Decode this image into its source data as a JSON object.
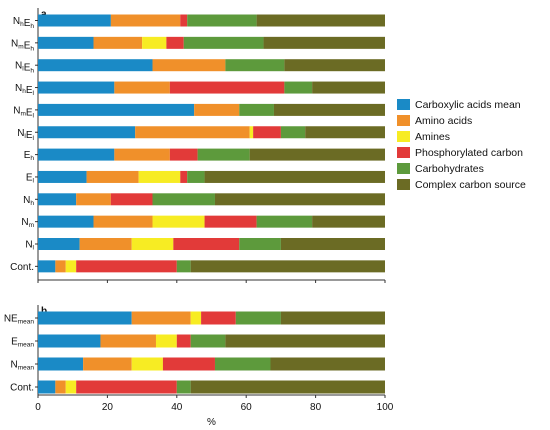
{
  "chart_data": [
    {
      "panel": "a",
      "type": "bar",
      "orientation": "horizontal",
      "stacked": true,
      "categories": [
        {
          "main": "N",
          "sub": "h",
          "main2": "E",
          "sub2": "h"
        },
        {
          "main": "N",
          "sub": "m",
          "main2": "E",
          "sub2": "h"
        },
        {
          "main": "N",
          "sub": "l",
          "main2": "E",
          "sub2": "h"
        },
        {
          "main": "N",
          "sub": "h",
          "main2": "E",
          "sub2": "l"
        },
        {
          "main": "N",
          "sub": "m",
          "main2": "E",
          "sub2": "l"
        },
        {
          "main": "N",
          "sub": "l",
          "main2": "E",
          "sub2": "l"
        },
        {
          "main": "E",
          "sub": "h",
          "main2": "",
          "sub2": ""
        },
        {
          "main": "E",
          "sub": "l",
          "main2": "",
          "sub2": ""
        },
        {
          "main": "N",
          "sub": "h",
          "main2": "",
          "sub2": ""
        },
        {
          "main": "N",
          "sub": "m",
          "main2": "",
          "sub2": ""
        },
        {
          "main": "N",
          "sub": "l",
          "main2": "",
          "sub2": ""
        },
        {
          "main": "Cont.",
          "sub": "",
          "main2": "",
          "sub2": ""
        }
      ],
      "series": [
        {
          "name": "Carboxylic acids mean",
          "color": "#1a8ac6",
          "values": [
            21,
            16,
            33,
            22,
            45,
            28,
            22,
            14,
            11,
            16,
            12,
            5
          ]
        },
        {
          "name": "Amino acids",
          "color": "#f0902a",
          "values": [
            20,
            14,
            21,
            16,
            13,
            33,
            16,
            15,
            10,
            17,
            15,
            3
          ]
        },
        {
          "name": "Amines",
          "color": "#f7ec23",
          "values": [
            0,
            7,
            0,
            0,
            0,
            1,
            0,
            12,
            0,
            15,
            12,
            3
          ]
        },
        {
          "name": "Phosphorylated carbon",
          "color": "#e23a39",
          "values": [
            2,
            5,
            0,
            33,
            0,
            8,
            8,
            2,
            12,
            15,
            19,
            29
          ]
        },
        {
          "name": "Carbohydrates",
          "color": "#5d9a3c",
          "values": [
            20,
            23,
            17,
            8,
            10,
            7,
            15,
            5,
            18,
            16,
            12,
            4
          ]
        },
        {
          "name": "Complex carbon source",
          "color": "#6b6b24",
          "values": [
            37,
            35,
            29,
            21,
            32,
            23,
            39,
            52,
            49,
            21,
            30,
            56
          ]
        }
      ],
      "xlim": [
        0,
        100
      ]
    },
    {
      "panel": "b",
      "type": "bar",
      "orientation": "horizontal",
      "stacked": true,
      "categories": [
        {
          "main": "NE",
          "sub": "mean",
          "main2": "",
          "sub2": ""
        },
        {
          "main": "E",
          "sub": "mean",
          "main2": "",
          "sub2": ""
        },
        {
          "main": "N",
          "sub": "mean",
          "main2": "",
          "sub2": ""
        },
        {
          "main": "Cont.",
          "sub": "",
          "main2": "",
          "sub2": ""
        }
      ],
      "series": [
        {
          "name": "Carboxylic acids mean",
          "color": "#1a8ac6",
          "values": [
            27,
            18,
            13,
            5
          ]
        },
        {
          "name": "Amino acids",
          "color": "#f0902a",
          "values": [
            17,
            16,
            14,
            3
          ]
        },
        {
          "name": "Amines",
          "color": "#f7ec23",
          "values": [
            3,
            6,
            9,
            3
          ]
        },
        {
          "name": "Phosphorylated carbon",
          "color": "#e23a39",
          "values": [
            10,
            4,
            15,
            29
          ]
        },
        {
          "name": "Carbohydrates",
          "color": "#5d9a3c",
          "values": [
            13,
            10,
            16,
            4
          ]
        },
        {
          "name": "Complex carbon source",
          "color": "#6b6b24",
          "values": [
            30,
            46,
            33,
            56
          ]
        }
      ],
      "xlim": [
        0,
        100
      ],
      "xticks": [
        0,
        20,
        40,
        60,
        80,
        100
      ],
      "xlabel": "%"
    }
  ],
  "legend": {
    "placement": "right",
    "items": [
      {
        "name": "Carboxylic acids mean",
        "color": "#1a8ac6"
      },
      {
        "name": "Amino acids",
        "color": "#f0902a"
      },
      {
        "name": "Amines",
        "color": "#f7ec23"
      },
      {
        "name": "Phosphorylated carbon",
        "color": "#e23a39"
      },
      {
        "name": "Carbohydrates",
        "color": "#5d9a3c"
      },
      {
        "name": "Complex carbon source",
        "color": "#6b6b24"
      }
    ]
  }
}
